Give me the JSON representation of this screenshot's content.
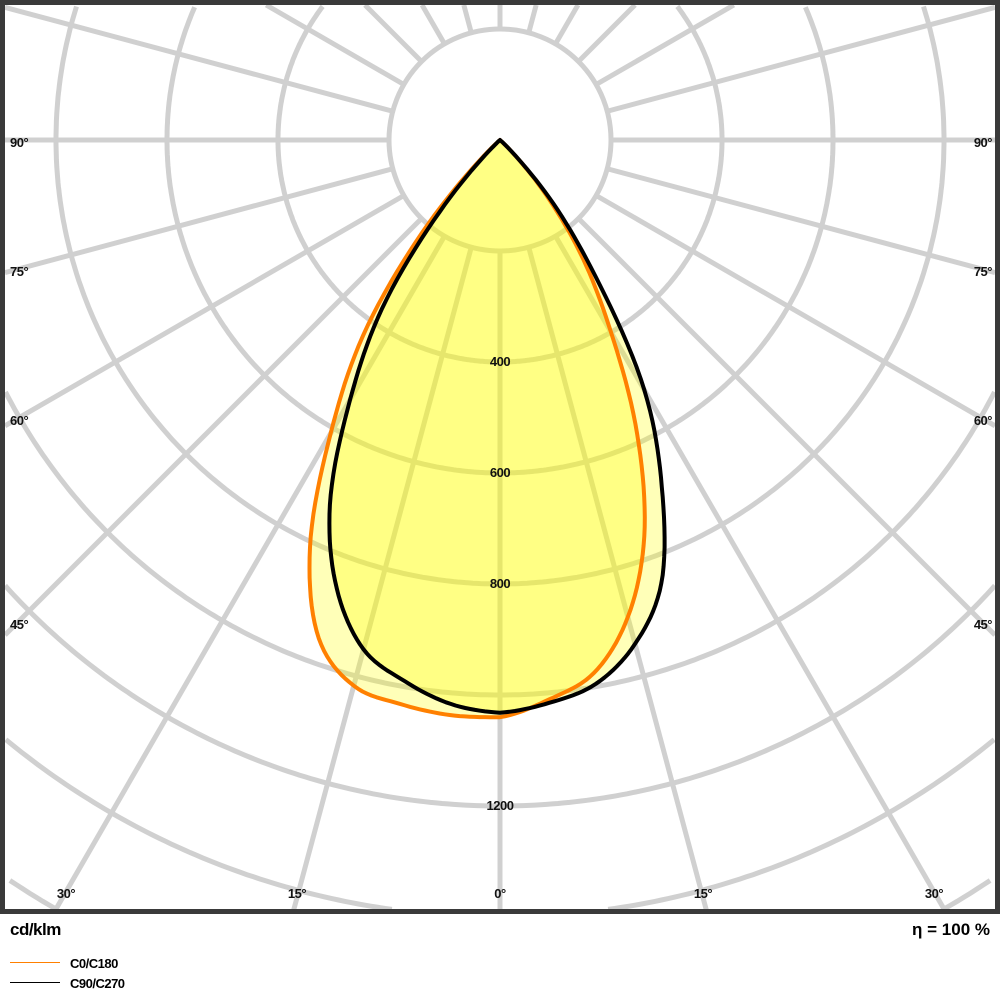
{
  "chart_data": {
    "type": "polar",
    "unit_label": "cd/klm",
    "efficiency_label": "η = 100 %",
    "radial_rings": [
      200,
      400,
      600,
      800,
      1000,
      1200,
      1400,
      1600
    ],
    "radial_tick_labels": [
      "400",
      "600",
      "800",
      "1200"
    ],
    "radial_tick_values": [
      400,
      600,
      800,
      1200
    ],
    "angle_step": 15,
    "side_angle_labels": [
      "90°",
      "75°",
      "60°",
      "45°"
    ],
    "bottom_angle_labels": [
      "30°",
      "15°",
      "0°",
      "15°",
      "30°"
    ],
    "gamma": [
      0,
      5,
      10,
      15,
      20,
      25,
      30,
      35,
      40,
      45,
      50
    ],
    "series": [
      {
        "name": "C0/C180",
        "color": "#ff8000",
        "left_plane": "C0",
        "left_values": [
          1040,
          1040,
          1032,
          1018,
          955,
          810,
          610,
          430,
          220,
          50,
          0
        ],
        "right_plane": "C180",
        "right_values": [
          1040,
          1012,
          975,
          890,
          760,
          585,
          400,
          260,
          130,
          30,
          0
        ]
      },
      {
        "name": "C90/C270",
        "color": "#000000",
        "left_plane": "C90",
        "left_values": [
          1032,
          1020,
          990,
          950,
          860,
          725,
          540,
          370,
          170,
          30,
          0
        ],
        "right_plane": "C270",
        "right_values": [
          1032,
          1018,
          995,
          940,
          850,
          690,
          520,
          300,
          150,
          30,
          0
        ]
      }
    ],
    "fill_color": "#ffff00",
    "grid_color": "#d0d0d0",
    "frame_color": "#3a3a3a"
  }
}
